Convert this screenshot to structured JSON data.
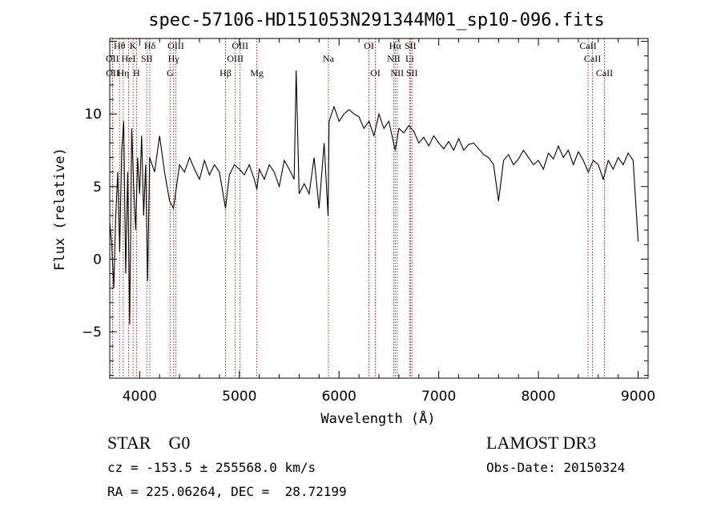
{
  "chart_data": {
    "type": "line",
    "title": "spec-57106-HD151053N291344M01_sp10-096.fits",
    "xlabel": "Wavelength (Å)",
    "ylabel": "Flux (relative)",
    "xlim": [
      3700,
      9100
    ],
    "ylim": [
      -8.2,
      15.2
    ],
    "xticks": [
      4000,
      5000,
      6000,
      7000,
      8000,
      9000
    ],
    "yticks": [
      -5,
      0,
      5,
      10
    ],
    "grid": false,
    "series": [
      {
        "color": "#000000",
        "x": [
          3700,
          3720,
          3740,
          3760,
          3780,
          3800,
          3820,
          3840,
          3860,
          3880,
          3900,
          3920,
          3940,
          3960,
          3980,
          4000,
          4020,
          4040,
          4060,
          4080,
          4100,
          4150,
          4200,
          4250,
          4300,
          4340,
          4400,
          4450,
          4500,
          4550,
          4600,
          4650,
          4700,
          4750,
          4800,
          4861,
          4900,
          4950,
          5000,
          5050,
          5100,
          5150,
          5175,
          5200,
          5250,
          5300,
          5350,
          5400,
          5450,
          5500,
          5550,
          5570,
          5600,
          5650,
          5700,
          5750,
          5800,
          5850,
          5890,
          5900,
          5950,
          6000,
          6050,
          6100,
          6150,
          6200,
          6250,
          6300,
          6350,
          6400,
          6450,
          6500,
          6563,
          6600,
          6650,
          6700,
          6750,
          6800,
          6850,
          6900,
          6950,
          7000,
          7050,
          7100,
          7150,
          7200,
          7250,
          7300,
          7350,
          7400,
          7450,
          7500,
          7550,
          7600,
          7650,
          7700,
          7750,
          7800,
          7850,
          7900,
          7950,
          8000,
          8050,
          8100,
          8150,
          8200,
          8250,
          8300,
          8350,
          8400,
          8450,
          8500,
          8550,
          8600,
          8650,
          8700,
          8750,
          8800,
          8850,
          8900,
          8950,
          9000
        ],
        "y": [
          2.5,
          1.0,
          -2.0,
          3.0,
          6.0,
          0.5,
          7.5,
          9.5,
          -1.0,
          6.0,
          -4.5,
          9.0,
          5.0,
          2.0,
          7.0,
          4.5,
          8.5,
          3.0,
          6.5,
          -1.5,
          7.0,
          6.0,
          8.5,
          6.0,
          4.0,
          3.5,
          6.5,
          6.0,
          7.0,
          6.2,
          5.5,
          6.8,
          5.8,
          6.5,
          6.0,
          3.5,
          5.8,
          6.5,
          6.2,
          5.8,
          6.5,
          5.5,
          4.8,
          6.2,
          5.5,
          6.5,
          6.0,
          5.0,
          6.8,
          6.2,
          5.5,
          13.0,
          4.5,
          5.2,
          4.5,
          7.0,
          3.5,
          8.0,
          3.0,
          9.5,
          10.5,
          9.5,
          10.0,
          10.3,
          10.0,
          9.8,
          9.0,
          9.5,
          8.5,
          10.0,
          9.0,
          9.5,
          7.5,
          9.0,
          8.7,
          9.2,
          8.8,
          8.0,
          8.4,
          7.8,
          8.5,
          8.0,
          7.6,
          8.1,
          7.5,
          8.3,
          7.5,
          7.9,
          8.0,
          7.6,
          7.2,
          7.0,
          6.5,
          4.0,
          6.8,
          7.2,
          6.5,
          6.9,
          7.5,
          7.0,
          6.5,
          6.8,
          6.2,
          7.3,
          6.9,
          7.8,
          7.0,
          7.5,
          6.5,
          7.4,
          6.8,
          6.0,
          6.8,
          6.5,
          5.5,
          6.8,
          6.2,
          7.0,
          6.5,
          7.3,
          6.8,
          1.2
        ]
      }
    ],
    "lines_top": [
      {
        "label": "Hθ",
        "x": 3798,
        "row": 0
      },
      {
        "label": "K",
        "x": 3934,
        "row": 0
      },
      {
        "label": "Hδ",
        "x": 4102,
        "row": 0
      },
      {
        "label": "OIII",
        "x": 4363,
        "row": 0
      },
      {
        "label": "OIII",
        "x": 5007,
        "row": 0
      },
      {
        "label": "OI",
        "x": 6300,
        "row": 0
      },
      {
        "label": "Hα",
        "x": 6563,
        "row": 0
      },
      {
        "label": "SII",
        "x": 6716,
        "row": 0
      },
      {
        "label": "CaII",
        "x": 8498,
        "row": 0
      },
      {
        "label": "OII",
        "x": 3727,
        "row": 1
      },
      {
        "label": "HeI",
        "x": 3889,
        "row": 1
      },
      {
        "label": "SII",
        "x": 4072,
        "row": 1
      },
      {
        "label": "Hγ",
        "x": 4340,
        "row": 1
      },
      {
        "label": "OIII",
        "x": 4959,
        "row": 1
      },
      {
        "label": "Na",
        "x": 5893,
        "row": 1
      },
      {
        "label": "NII",
        "x": 6548,
        "row": 1
      },
      {
        "label": "Li",
        "x": 6708,
        "row": 1
      },
      {
        "label": "CaII",
        "x": 8542,
        "row": 1
      },
      {
        "label": "OII",
        "x": 3729,
        "row": 2
      },
      {
        "label": "Hη",
        "x": 3835,
        "row": 2
      },
      {
        "label": "H",
        "x": 3968,
        "row": 2
      },
      {
        "label": "G",
        "x": 4305,
        "row": 2
      },
      {
        "label": "Hβ",
        "x": 4861,
        "row": 2
      },
      {
        "label": "Mg",
        "x": 5175,
        "row": 2
      },
      {
        "label": "OI",
        "x": 6364,
        "row": 2
      },
      {
        "label": "NII",
        "x": 6583,
        "row": 2
      },
      {
        "label": "SII",
        "x": 6731,
        "row": 2
      },
      {
        "label": "CaII",
        "x": 8662,
        "row": 2
      }
    ]
  },
  "info": {
    "object_class": "STAR    G0",
    "survey": "LAMOST DR3",
    "redshift_line": "cz = -153.5 ± 255568.0 km/s",
    "obs_date": "Obs-Date: 20150324",
    "coords": "RA = 225.06264, DEC =  28.72199"
  }
}
